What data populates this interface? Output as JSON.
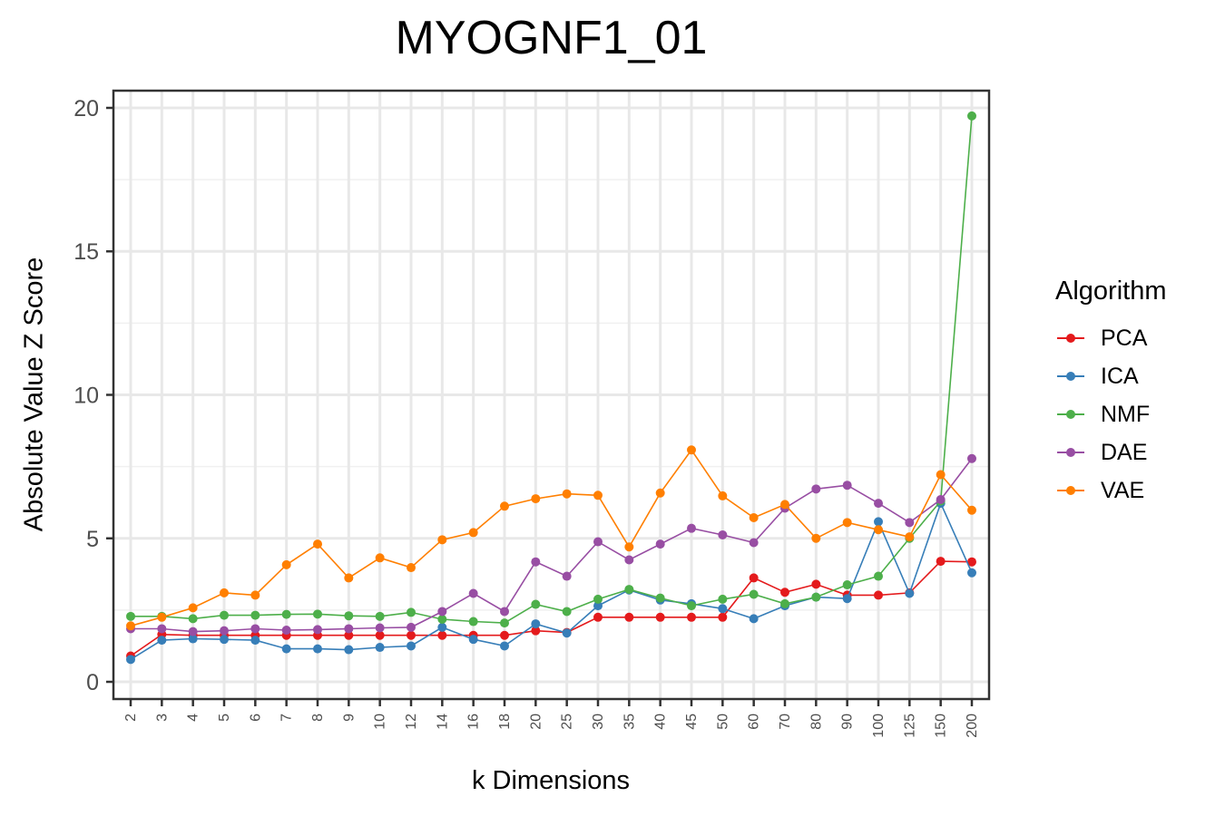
{
  "chart_data": {
    "type": "line",
    "title": "MYOGNF1_01",
    "xlabel": "k Dimensions",
    "ylabel": "Absolute Value Z Score",
    "ylim": [
      -0.6,
      20.6
    ],
    "yticks": [
      "0",
      "5",
      "10",
      "15",
      "20"
    ],
    "grid": true,
    "legend_title": "Algorithm",
    "legend_position": "right",
    "categories": [
      "2",
      "3",
      "4",
      "5",
      "6",
      "7",
      "8",
      "9",
      "10",
      "12",
      "14",
      "16",
      "18",
      "20",
      "25",
      "30",
      "35",
      "40",
      "45",
      "50",
      "60",
      "70",
      "80",
      "90",
      "100",
      "125",
      "150",
      "200"
    ],
    "series": [
      {
        "name": "PCA",
        "color": "#E41A1C",
        "values": [
          0.9,
          1.65,
          1.62,
          1.62,
          1.62,
          1.62,
          1.62,
          1.62,
          1.62,
          1.62,
          1.62,
          1.62,
          1.62,
          1.78,
          1.72,
          2.25,
          2.25,
          2.25,
          2.25,
          2.25,
          3.62,
          3.12,
          3.4,
          3.02,
          3.02,
          3.1,
          4.2,
          4.18
        ]
      },
      {
        "name": "ICA",
        "color": "#377EB8",
        "values": [
          0.78,
          1.45,
          1.5,
          1.48,
          1.45,
          1.15,
          1.15,
          1.12,
          1.2,
          1.25,
          1.9,
          1.48,
          1.25,
          2.02,
          1.7,
          2.65,
          3.2,
          2.85,
          2.72,
          2.55,
          2.2,
          2.65,
          2.95,
          2.9,
          5.58,
          3.08,
          6.22,
          3.8
        ]
      },
      {
        "name": "NMF",
        "color": "#4DAF4A",
        "values": [
          2.28,
          2.28,
          2.2,
          2.32,
          2.32,
          2.35,
          2.36,
          2.3,
          2.28,
          2.42,
          2.18,
          2.1,
          2.05,
          2.7,
          2.45,
          2.88,
          3.22,
          2.92,
          2.65,
          2.88,
          3.05,
          2.72,
          2.95,
          3.38,
          3.68,
          5.0,
          6.3,
          19.72
        ]
      },
      {
        "name": "DAE",
        "color": "#984EA3",
        "values": [
          1.85,
          1.85,
          1.75,
          1.78,
          1.85,
          1.8,
          1.82,
          1.85,
          1.88,
          1.9,
          2.45,
          3.08,
          2.45,
          4.18,
          3.68,
          4.88,
          4.25,
          4.8,
          5.35,
          5.12,
          4.85,
          6.05,
          6.72,
          6.85,
          6.22,
          5.55,
          6.35,
          7.78
        ]
      },
      {
        "name": "VAE",
        "color": "#FF7F00",
        "values": [
          1.95,
          2.25,
          2.58,
          3.1,
          3.02,
          4.08,
          4.8,
          3.62,
          4.32,
          3.98,
          4.95,
          5.2,
          6.12,
          6.38,
          6.55,
          6.5,
          4.7,
          6.58,
          8.08,
          6.48,
          5.72,
          6.18,
          5.0,
          5.55,
          5.3,
          5.05,
          7.22,
          5.98
        ]
      }
    ]
  }
}
